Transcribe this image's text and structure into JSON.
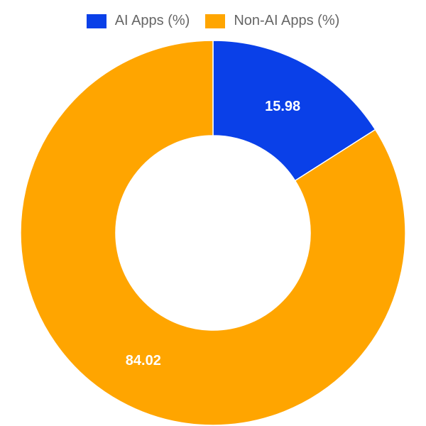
{
  "chart_data": {
    "type": "pie",
    "donut": true,
    "title": "",
    "categories": [
      "AI Apps (%)",
      "Non-AI Apps (%)"
    ],
    "values": [
      15.98,
      84.02
    ],
    "data_labels": [
      "15.98",
      "84.02"
    ],
    "colors": [
      "#0a40e8",
      "#ffa500"
    ],
    "legend_position": "top",
    "start_angle": "12 o'clock, clockwise"
  }
}
